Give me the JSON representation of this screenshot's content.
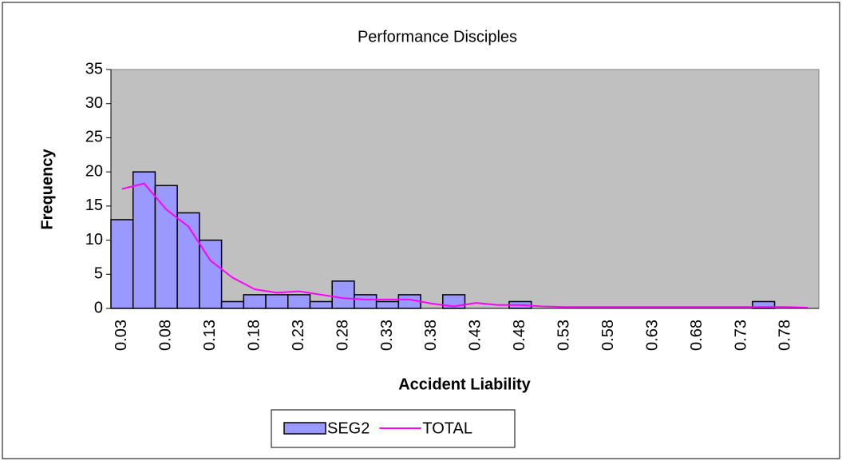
{
  "chart_data": {
    "type": "bar",
    "title": "Performance Disciples",
    "x_label": "Accident Liability",
    "y_label": "Frequency",
    "categories": [
      "0.03",
      null,
      "0.08",
      null,
      "0.13",
      null,
      "0.18",
      null,
      "0.23",
      null,
      "0.28",
      null,
      "0.33",
      null,
      "0.38",
      null,
      "0.43",
      null,
      "0.48",
      null,
      "0.53",
      null,
      "0.58",
      null,
      "0.63",
      null,
      "0.68",
      null,
      "0.73",
      null,
      "0.78",
      null
    ],
    "series": [
      {
        "name": "SEG2",
        "type": "bar",
        "color": "#9999ff",
        "values": [
          13,
          20,
          18,
          14,
          10,
          1,
          2,
          2,
          2,
          1,
          4,
          2,
          1,
          2,
          0,
          2,
          0,
          0,
          1,
          0,
          0,
          0,
          0,
          0,
          0,
          0,
          0,
          0,
          0,
          1,
          0,
          0
        ]
      },
      {
        "name": "TOTAL",
        "type": "line",
        "color": "#ff00ff",
        "values": [
          17.5,
          18.3,
          14.5,
          12,
          7,
          4.5,
          2.8,
          2.3,
          2.5,
          2,
          1.5,
          1.3,
          1.3,
          1.3,
          0.7,
          0.3,
          0.8,
          0.5,
          0.5,
          0.3,
          0.2,
          0.2,
          0.2,
          0.2,
          0.2,
          0.2,
          0.2,
          0.2,
          0.2,
          0.2,
          0.2,
          0.1
        ]
      }
    ],
    "ylim": [
      0,
      35
    ],
    "yticks": [
      0,
      5,
      10,
      15,
      20,
      25,
      30,
      35
    ],
    "plot_background": "#c0c0c0"
  }
}
